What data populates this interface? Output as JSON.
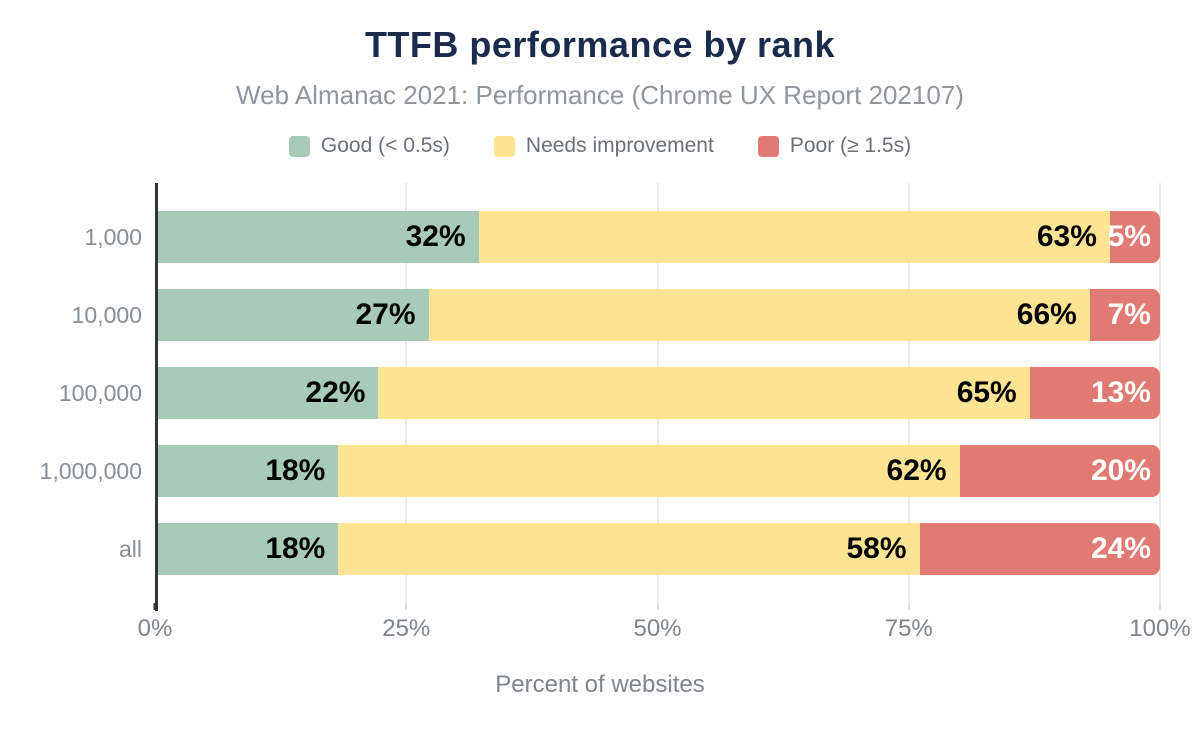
{
  "title": "TTFB performance by rank",
  "subtitle": "Web Almanac 2021: Performance (Chrome UX Report 202107)",
  "legend": [
    {
      "label": "Good (< 0.5s)",
      "color": "#a8cbb9"
    },
    {
      "label": "Needs improvement",
      "color": "#fde394"
    },
    {
      "label": "Poor (≥ 1.5s)",
      "color": "#e07a73"
    }
  ],
  "chart_data": {
    "type": "bar",
    "orientation": "horizontal",
    "stacked": true,
    "title": "TTFB performance by rank",
    "subtitle": "Web Almanac 2021: Performance (Chrome UX Report 202107)",
    "categories": [
      "1,000",
      "10,000",
      "100,000",
      "1,000,000",
      "all"
    ],
    "series": [
      {
        "name": "Good (< 0.5s)",
        "color": "#a8cbb9",
        "label_color": "#000000",
        "values": [
          32,
          27,
          22,
          18,
          18
        ]
      },
      {
        "name": "Needs improvement",
        "color": "#fde394",
        "label_color": "#000000",
        "values": [
          63,
          66,
          65,
          62,
          58
        ]
      },
      {
        "name": "Poor (≥ 1.5s)",
        "color": "#e07a73",
        "label_color": "#ffffff",
        "values": [
          5,
          7,
          13,
          20,
          24
        ]
      }
    ],
    "value_suffix": "%",
    "xlim": [
      0,
      100
    ],
    "x_ticks": [
      "0%",
      "25%",
      "50%",
      "75%",
      "100%"
    ],
    "xlabel": "Percent of websites",
    "grid": "vertical",
    "legend_position": "top"
  },
  "colors": {
    "title": "#1b2b4d",
    "subtitle_text": "#91969c",
    "legend_text": "#6b7177",
    "y_label_text": "#898f96",
    "x_tick_text": "#7f858c",
    "axis_line": "#30363c",
    "gridline": "#ececec",
    "background": "#ffffff"
  }
}
